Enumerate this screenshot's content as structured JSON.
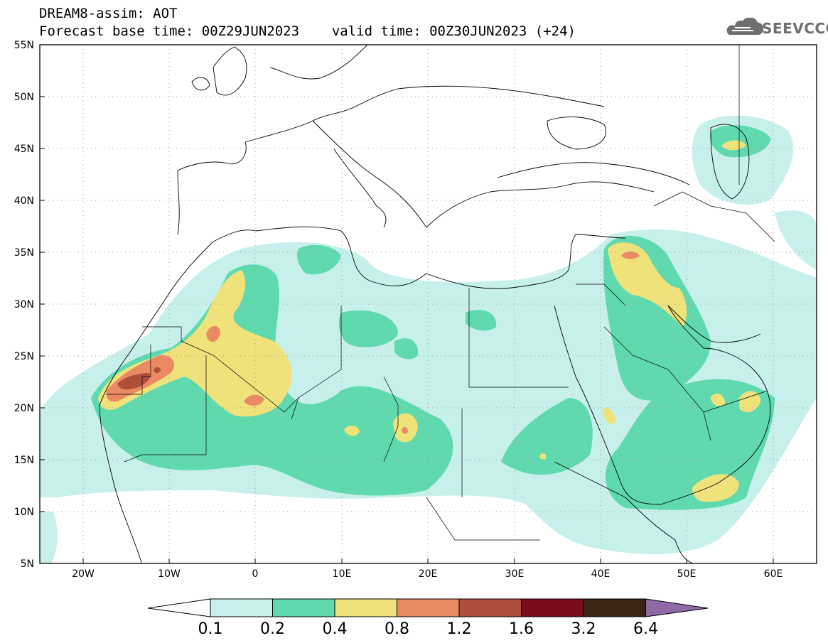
{
  "header": {
    "line1": "DREAM8-assim: AOT",
    "base_time_label": "Forecast base time: 00Z29JUN2023",
    "valid_time_label": "valid time: 00Z30JUN2023 (+24)",
    "logo_text": "SEEVCCC"
  },
  "map": {
    "lon_range": [
      -25,
      65
    ],
    "lat_range": [
      5,
      55
    ],
    "lat_ticks": [
      {
        "value": 55,
        "label": "55N"
      },
      {
        "value": 50,
        "label": "50N"
      },
      {
        "value": 45,
        "label": "45N"
      },
      {
        "value": 40,
        "label": "40N"
      },
      {
        "value": 35,
        "label": "35N"
      },
      {
        "value": 30,
        "label": "30N"
      },
      {
        "value": 25,
        "label": "25N"
      },
      {
        "value": 20,
        "label": "20N"
      },
      {
        "value": 15,
        "label": "15N"
      },
      {
        "value": 10,
        "label": "10N"
      },
      {
        "value": 5,
        "label": "5N"
      }
    ],
    "lon_ticks": [
      {
        "value": -20,
        "label": "20W"
      },
      {
        "value": -10,
        "label": "10W"
      },
      {
        "value": 0,
        "label": "0"
      },
      {
        "value": 10,
        "label": "10E"
      },
      {
        "value": 20,
        "label": "20E"
      },
      {
        "value": 30,
        "label": "30E"
      },
      {
        "value": 40,
        "label": "40E"
      },
      {
        "value": 50,
        "label": "50E"
      },
      {
        "value": 60,
        "label": "60E"
      }
    ],
    "grid": "dotted every 5 degrees"
  },
  "colorbar": {
    "levels": [
      "0.1",
      "0.2",
      "0.4",
      "0.8",
      "1.2",
      "1.6",
      "3.2",
      "6.4"
    ],
    "colors": [
      "#c7f0ec",
      "#5fd9ad",
      "#f0e27a",
      "#e98a63",
      "#b04e3c",
      "#7a0c1e",
      "#3b2616",
      "#8e6aa6"
    ]
  },
  "fields": [
    {
      "level": "0.1-0.2",
      "color": "#c7f0ec"
    },
    {
      "level": "0.2-0.4",
      "color": "#5fd9ad"
    },
    {
      "level": "0.4-0.8",
      "color": "#f0e27a"
    },
    {
      "level": "0.8-1.2",
      "color": "#e98a63"
    },
    {
      "level": "1.2-1.6",
      "color": "#b04e3c"
    }
  ]
}
